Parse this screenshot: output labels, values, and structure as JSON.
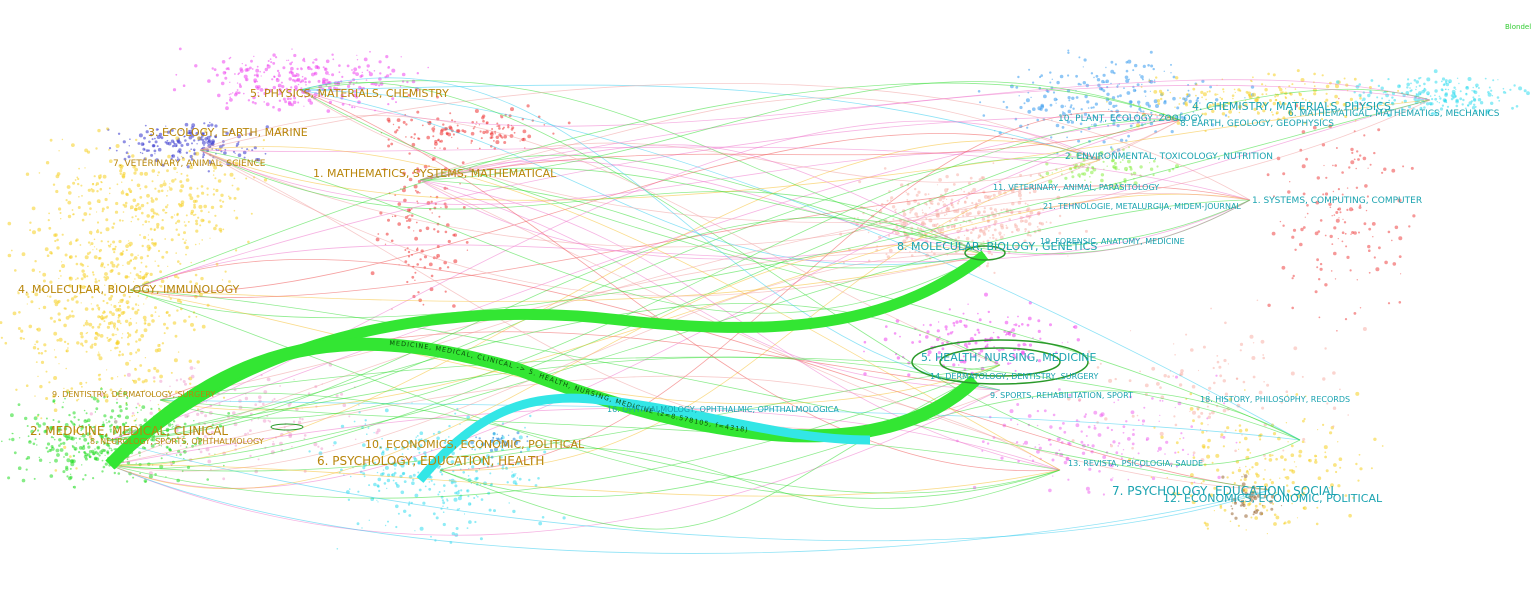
{
  "legend_tag": "Blondel",
  "left_map": {
    "labels": [
      "5. PHYSICS, MATERIALS, CHEMISTRY",
      "3. ECOLOGY, EARTH, MARINE",
      "7. VETERINARY, ANIMAL, SCIENCE",
      "1. MATHEMATICS, SYSTEMS, MATHEMATICAL",
      "4. MOLECULAR, BIOLOGY, IMMUNOLOGY",
      "9. DENTISTRY, DERMATOLOGY, SURGERY",
      "2. MEDICINE, MEDICAL, CLINICAL",
      "8. NEUROLOGY, SPORTS, OPHTHALMOLOGY",
      "10. ECONOMICS, ECONOMIC, POLITICAL",
      "6. PSYCHOLOGY, EDUCATION, HEALTH"
    ]
  },
  "right_map": {
    "labels": [
      "4. CHEMISTRY, MATERIALS, PHYSICS",
      "6. MATHEMATICAL, MATHEMATICS, MECHANICS",
      "10. PLANT, ECOLOGY, ZOOLOGY",
      "8. EARTH, GEOLOGY, GEOPHYSICS",
      "2. ENVIRONMENTAL, TOXICOLOGY, NUTRITION",
      "11. VETERINARY, ANIMAL, PARASITOLOGY",
      "1. SYSTEMS, COMPUTING, COMPUTER",
      "21. TEHNOLOGIE, METALURGIJA, MIDEM-JOURNAL",
      "19. FORENSIC, ANATOMY, MEDICINE",
      "8. MOLECULAR, BIOLOGY, GENETICS",
      "5. HEALTH, NURSING, MEDICINE",
      "14. DERMATOLOGY, DENTISTRY, SURGERY",
      "9. SPORTS, REHABILITATION, SPORT",
      "18. HISTORY, PHILOSOPHY, RECORDS",
      "16. OPHTHALMOLOGY, OPHTHALMIC, OPHTHALMOLOGICA",
      "13. REVISTA, PSICOLOGIA, SAUDE",
      "7. PSYCHOLOGY, EDUCATION, SOCIAL",
      "12. ECONOMICS, ECONOMIC, POLITICAL"
    ]
  },
  "main_link_label": "MEDICINE, MEDICAL, CLINICAL -> 5. HEALTH, NURSING, MEDICINE (z=8.578105, f=4318)"
}
